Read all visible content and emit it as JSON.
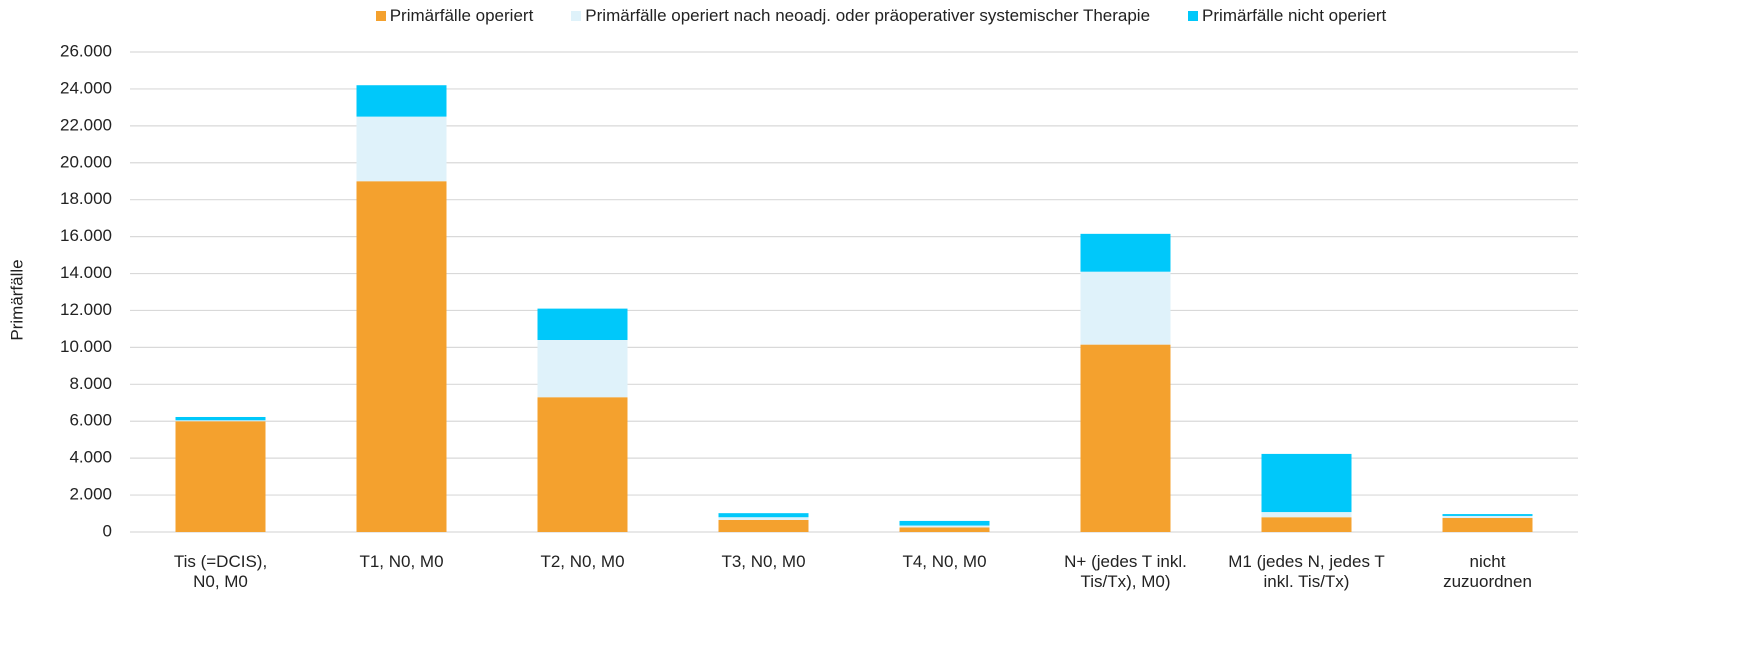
{
  "chart_data": {
    "type": "stacked_bar",
    "ylabel": "Primärfälle",
    "categories": [
      "Tis (=DCIS),\nN0, M0",
      "T1, N0, M0",
      "T2, N0, M0",
      "T3, N0, M0",
      "T4, N0, M0",
      "N+ (jedes T inkl.\nTis/Tx), M0)",
      "M1 (jedes N, jedes T\ninkl. Tis/Tx)",
      "nicht\nzuzuordnen"
    ],
    "series": [
      {
        "name": "Primärfälle operiert",
        "color": "#f4a12e",
        "values": [
          6000,
          19000,
          7300,
          650,
          250,
          10150,
          800,
          760
        ]
      },
      {
        "name": "Primärfälle operiert nach neoadj. oder präoperativer systemischer Therapie",
        "color": "#dff2fa",
        "values": [
          50,
          3500,
          3100,
          150,
          100,
          3950,
          280,
          110
        ]
      },
      {
        "name": "Primärfälle nicht operiert",
        "color": "#00c8fa",
        "values": [
          180,
          1700,
          1700,
          220,
          250,
          2050,
          3150,
          100
        ]
      }
    ],
    "ylim": [
      0,
      26000
    ],
    "yticks": [
      0,
      {
        "value": 2000,
        "label": "2.000"
      },
      {
        "value": 4000,
        "label": "4.000"
      },
      {
        "value": 6000,
        "label": "6.000"
      },
      {
        "value": 8000,
        "label": "8.000"
      },
      {
        "value": 10000,
        "label": "10.000"
      },
      {
        "value": 12000,
        "label": "12.000"
      },
      {
        "value": 14000,
        "label": "14.000"
      },
      {
        "value": 16000,
        "label": "16.000"
      },
      {
        "value": 18000,
        "label": "18.000"
      },
      {
        "value": 20000,
        "label": "20.000"
      },
      {
        "value": 22000,
        "label": "22.000"
      },
      {
        "value": 24000,
        "label": "24.000"
      },
      {
        "value": 26000,
        "label": "26.000"
      }
    ],
    "grid": true,
    "legend": "top"
  }
}
